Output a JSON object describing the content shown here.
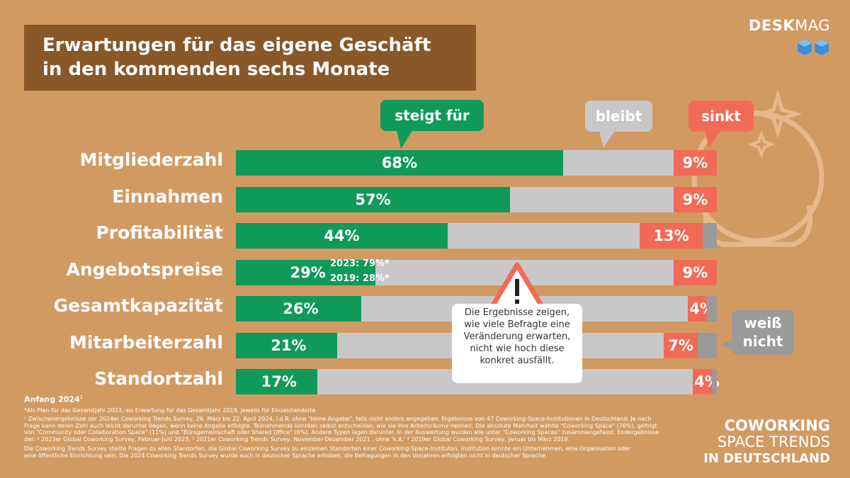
{
  "title_lines": [
    "Erwartungen für das eigene Geschäft",
    "in den kommenden sechs Monate"
  ],
  "brand": {
    "part1": "DESK",
    "part2": "MAG"
  },
  "colors": {
    "green": "#109a5a",
    "gray": "#c8c8c8",
    "red": "#f26a57",
    "darkgray": "#9a9a9a",
    "brown": "#8a5728",
    "background": "#d29a63"
  },
  "callouts": {
    "increase": "steigt für",
    "same": "bleibt",
    "decrease": "sinkt",
    "unknown_line1": "weiß",
    "unknown_line2": "nicht"
  },
  "chart_data": {
    "type": "bar",
    "orientation": "horizontal",
    "stacked": true,
    "categories": [
      "Mitgliederzahl",
      "Einnahmen",
      "Profitabilität",
      "Angebotspreise",
      "Gesamtkapazität",
      "Mitarbeiterzahl",
      "Standortzahl"
    ],
    "series": [
      {
        "name": "steigt für",
        "values": [
          68,
          57,
          44,
          29,
          26,
          21,
          17
        ],
        "labels": [
          "68%",
          "57%",
          "44%",
          "29%",
          "26%",
          "21%",
          "17%"
        ]
      },
      {
        "name": "bleibt",
        "values": [
          23,
          34,
          40,
          62,
          68,
          68,
          78
        ]
      },
      {
        "name": "sinkt",
        "values": [
          9,
          9,
          13,
          9,
          4,
          7,
          4
        ],
        "labels": [
          "9%",
          "9%",
          "13%",
          "9%",
          "4%",
          "7%",
          "4%"
        ]
      },
      {
        "name": "weiß nicht",
        "values": [
          0,
          0,
          3,
          0,
          2,
          4,
          1
        ]
      }
    ],
    "annotation_price": [
      "2023: 79%*",
      "2019: 28%*"
    ],
    "info_box": [
      "Die Ergebnisse zeigen,",
      "wie viele Befragte eine",
      "Veränderung erwarten,",
      "nicht wie hoch diese",
      "konkret ausfällt."
    ]
  },
  "footnote_heading": "Anfang 2024",
  "footnote_heading_sup": "1",
  "footnotes": [
    "*Als Plan für das Gesamtjahr 2023, als Erwartung für das Gesamtjahr 2019, jeweils für Einzelstandorte",
    "¹ Zwischenergebnisse der 2024er Coworking Trends Survey, 26. März bis 22. April 2024, i.d.R. ohne \"keine Angabe\", falls nicht anders angegeben. Ergebnisse von 47 Coworking-Space-Institutionen in Deutschland. Je nach",
    "Frage kann deren Zahl auch leicht darunter liegen, wenn keine Angabe erfolgte. Teilnehmende konnten selbst entscheiden, wie sie ihre Arbeitsräume nennen. Die absolute Mehrheit wählte \"Coworking Space\" (76%), gefolgt",
    "von \"Community oder Collaboration Space\" (11%) und \"Bürogemeinschaft oder Shared Office\" (6%). Andere Typen lagen darunter. In der Auswertung wurden alle unter \"Coworking Spaces\" zusammengefasst. Endergebnisse",
    "der: ² 2023er Global Coworking Survey, Februar-Juni 2023, ³ 2021er Coworking Trends Survey, November-Dezember 2021 , ohne 'k.A.' ⁴ 2019er Global Coworking Survey, Januar bis März 2019.",
    "Die Coworking Trends Survey stellte Fragen zu allen Standorten, die Global Coworking Survey zu einzelnen Standorten einer Coworking-Space-Instituton. Institution konnte ein Unternehmen, eine Organisation oder",
    "eine öffentliche Einrichtung sein. Die 2024 Coworking Trends Survey wurde auch in deutscher Sprache erhoben, die Befragungen in den Vorjahren erfolgten nicht in deutscher Sprache."
  ],
  "footer_brand": [
    "COWORKING",
    "SPACE TRENDS",
    "IN DEUTSCHLAND"
  ]
}
